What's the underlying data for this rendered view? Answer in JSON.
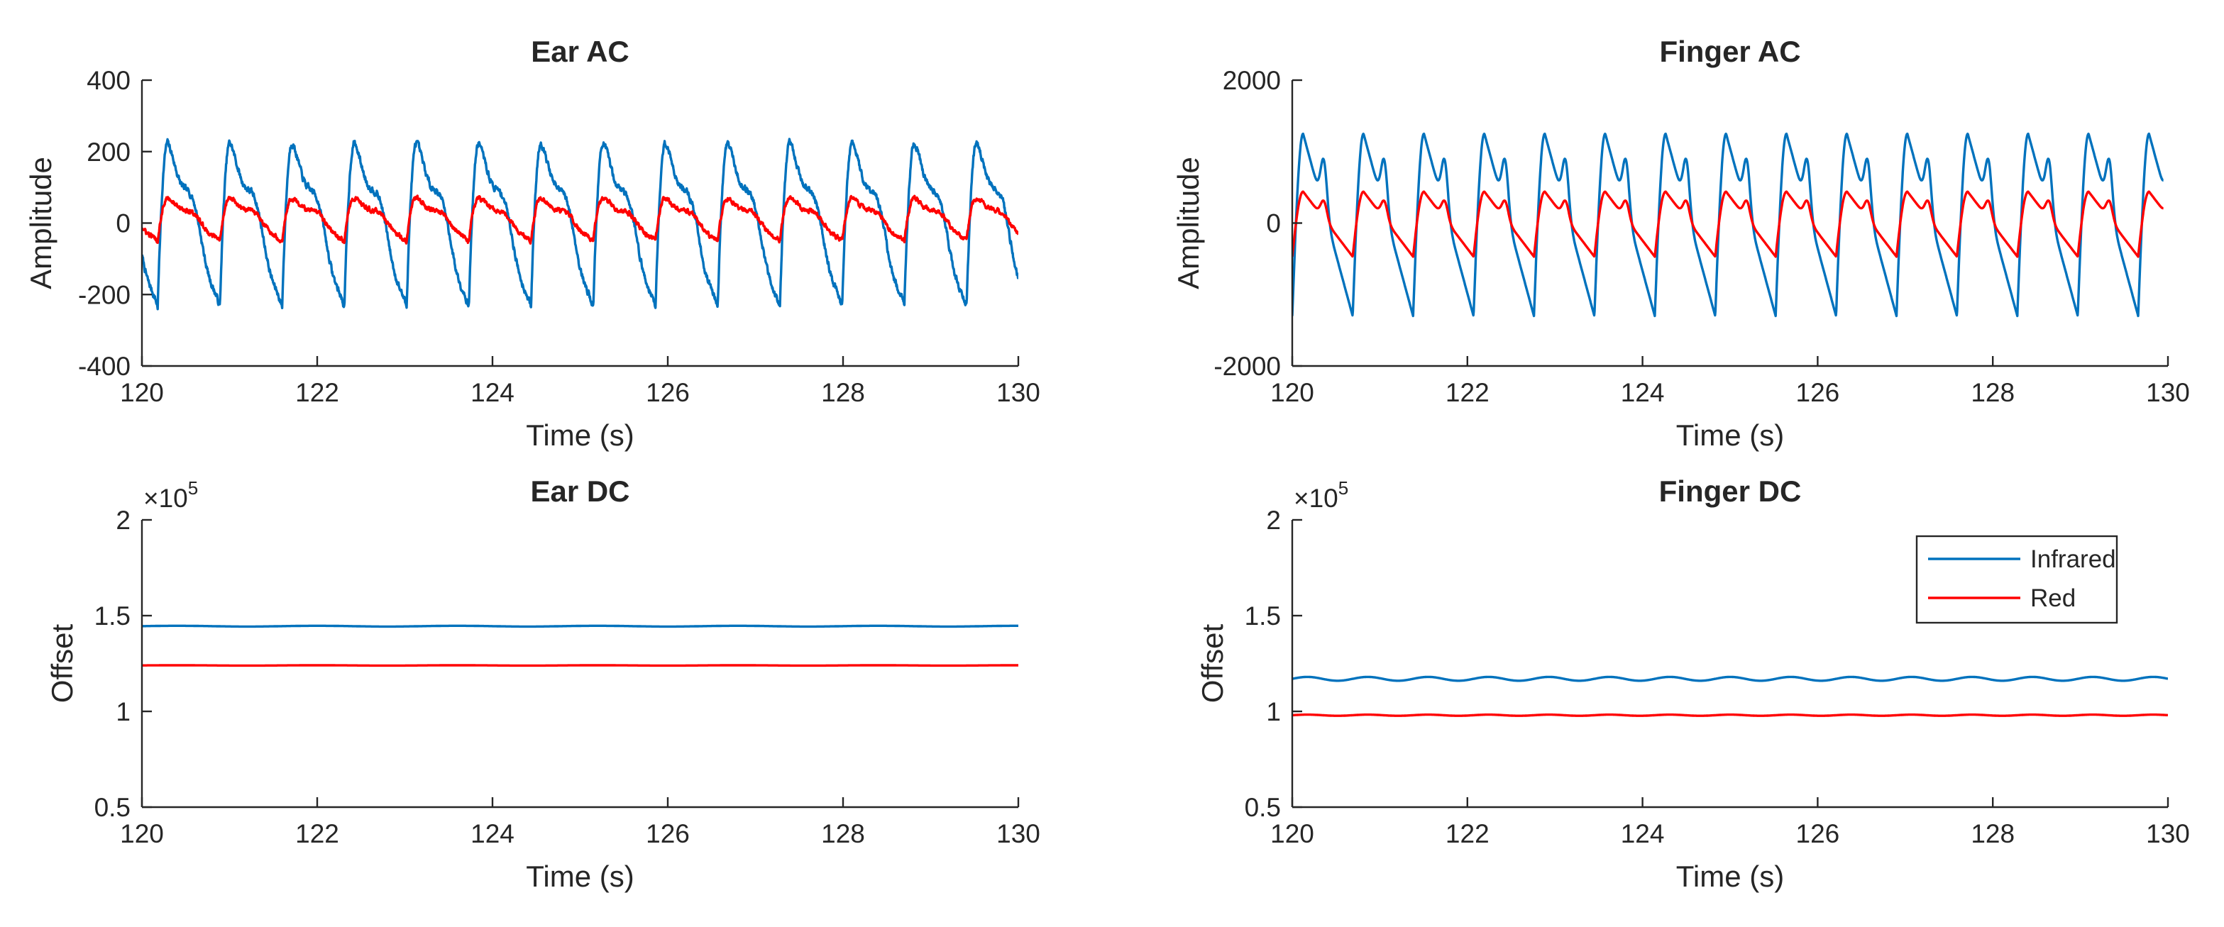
{
  "colors": {
    "infrared": "#0072BD",
    "red": "#FF0000",
    "axis": "#262626"
  },
  "legend": {
    "items": [
      "Infrared",
      "Red"
    ],
    "placement": "inside-top-right of Finger DC"
  },
  "chart_data": [
    {
      "id": "ear-ac",
      "type": "line",
      "title": "Ear AC",
      "xlabel": "Time (s)",
      "ylabel": "Amplitude",
      "xlim": [
        120,
        130
      ],
      "ylim": [
        -400,
        400
      ],
      "xticks": [
        "120",
        "122",
        "124",
        "126",
        "128",
        "130"
      ],
      "yticks": [
        "-400",
        "-200",
        "0",
        "200",
        "400"
      ],
      "xtick_values": [
        120,
        122,
        124,
        126,
        128,
        130
      ],
      "ytick_values": [
        -400,
        -200,
        0,
        200,
        400
      ],
      "series": [
        {
          "name": "Infrared",
          "wave": {
            "kind": "ppg",
            "start_s": 120.0,
            "end_s": 130.0,
            "beat_period_s": 0.71,
            "phase_s": 0.18,
            "peak": 225,
            "trough": -235,
            "noise": 14
          }
        },
        {
          "name": "Red",
          "wave": {
            "kind": "ppg",
            "start_s": 120.0,
            "end_s": 130.0,
            "beat_period_s": 0.71,
            "phase_s": 0.18,
            "peak": 70,
            "trough": -50,
            "noise": 10
          }
        }
      ]
    },
    {
      "id": "finger-ac",
      "type": "line",
      "title": "Finger AC",
      "xlabel": "Time (s)",
      "ylabel": "Amplitude",
      "xlim": [
        120,
        130
      ],
      "ylim": [
        -2000,
        2000
      ],
      "xticks": [
        "120",
        "122",
        "124",
        "126",
        "128",
        "130"
      ],
      "yticks": [
        "-2000",
        "0",
        "2000"
      ],
      "xtick_values": [
        120,
        122,
        124,
        126,
        128,
        130
      ],
      "ytick_values": [
        -2000,
        0,
        2000
      ],
      "series": [
        {
          "name": "Infrared",
          "wave": {
            "kind": "ppg-notch",
            "start_s": 120.0,
            "end_s": 129.95,
            "beat_period_s": 0.69,
            "phase_s": 0.0,
            "peak": 1250,
            "trough": -1300,
            "noise": 0
          }
        },
        {
          "name": "Red",
          "wave": {
            "kind": "ppg-notch",
            "start_s": 120.0,
            "end_s": 129.95,
            "beat_period_s": 0.69,
            "phase_s": 0.0,
            "peak": 440,
            "trough": -470,
            "noise": 0
          }
        }
      ]
    },
    {
      "id": "ear-dc",
      "type": "line",
      "title": "Ear DC",
      "xlabel": "Time (s)",
      "ylabel": "Offset",
      "xlim": [
        120,
        130
      ],
      "ylim": [
        0.5,
        2
      ],
      "xticks": [
        "120",
        "122",
        "124",
        "126",
        "128",
        "130"
      ],
      "yticks": [
        "0.5",
        "1",
        "1.5",
        "2"
      ],
      "xtick_values": [
        120,
        122,
        124,
        126,
        128,
        130
      ],
      "ytick_values": [
        0.5,
        1,
        1.5,
        2
      ],
      "y_exponent": {
        "base": "×10",
        "power": "5"
      },
      "series": [
        {
          "name": "Infrared",
          "wave": {
            "kind": "flat",
            "start_s": 120.0,
            "end_s": 130.0,
            "level": 1.445,
            "ripple": 0.002,
            "beat_period_s": 1.6
          }
        },
        {
          "name": "Red",
          "wave": {
            "kind": "flat",
            "start_s": 120.0,
            "end_s": 130.0,
            "level": 1.24,
            "ripple": 0.0008,
            "beat_period_s": 1.6
          }
        }
      ]
    },
    {
      "id": "finger-dc",
      "type": "line",
      "title": "Finger DC",
      "xlabel": "Time (s)",
      "ylabel": "Offset",
      "xlim": [
        120,
        130
      ],
      "ylim": [
        0.5,
        2
      ],
      "xticks": [
        "120",
        "122",
        "124",
        "126",
        "128",
        "130"
      ],
      "yticks": [
        "0.5",
        "1",
        "1.5",
        "2"
      ],
      "xtick_values": [
        120,
        122,
        124,
        126,
        128,
        130
      ],
      "ytick_values": [
        0.5,
        1,
        1.5,
        2
      ],
      "y_exponent": {
        "base": "×10",
        "power": "5"
      },
      "legend": true,
      "series": [
        {
          "name": "Infrared",
          "wave": {
            "kind": "flat",
            "start_s": 120.0,
            "end_s": 130.0,
            "level": 1.17,
            "ripple": 0.01,
            "beat_period_s": 0.69
          }
        },
        {
          "name": "Red",
          "wave": {
            "kind": "flat",
            "start_s": 120.0,
            "end_s": 130.0,
            "level": 0.98,
            "ripple": 0.003,
            "beat_period_s": 0.69
          }
        }
      ]
    }
  ]
}
